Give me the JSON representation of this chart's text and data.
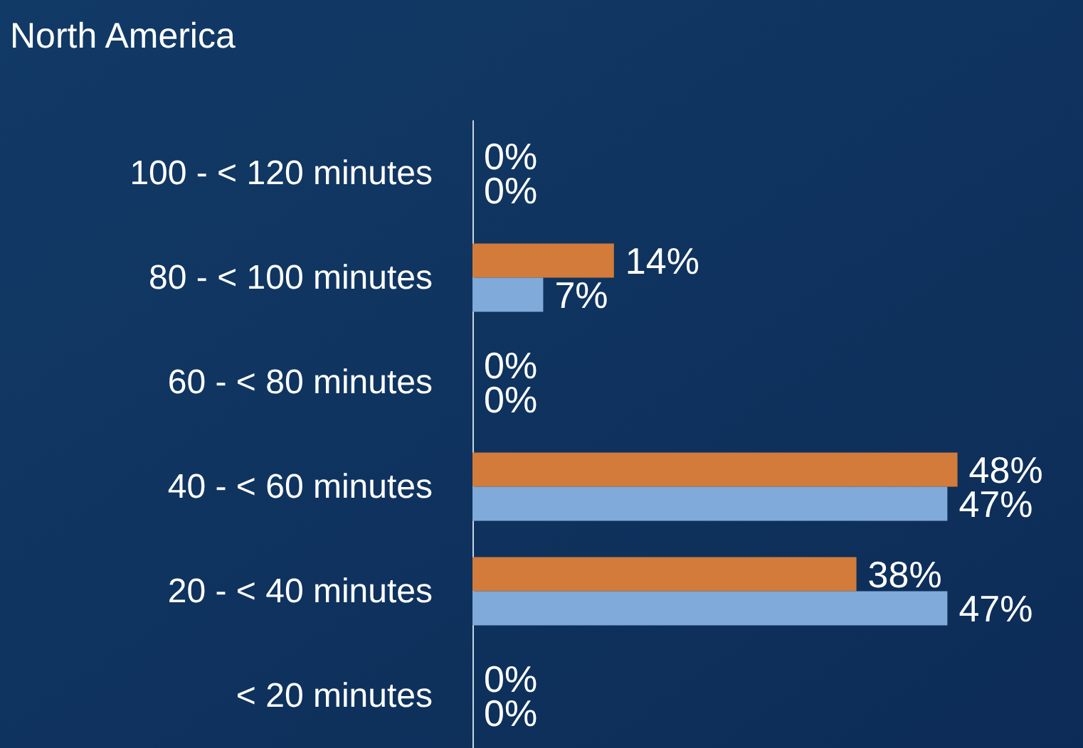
{
  "chart_data": {
    "type": "bar",
    "orientation": "horizontal",
    "title": "North America",
    "categories": [
      "100 - < 120 minutes",
      "80 - < 100 minutes",
      "60 - < 80 minutes",
      "40 - < 60 minutes",
      "20 - < 40 minutes",
      "< 20 minutes"
    ],
    "series": [
      {
        "color": "#d27b3a",
        "values": [
          0,
          14,
          0,
          48,
          38,
          0
        ],
        "value_labels": [
          "0%",
          "14%",
          "0%",
          "48%",
          "38%",
          "0%"
        ]
      },
      {
        "color": "#80aad9",
        "values": [
          0,
          7,
          0,
          47,
          47,
          0
        ],
        "value_labels": [
          "0%",
          "7%",
          "0%",
          "47%",
          "47%",
          "0%"
        ]
      }
    ],
    "tick_labels": "y",
    "grid": false
  }
}
